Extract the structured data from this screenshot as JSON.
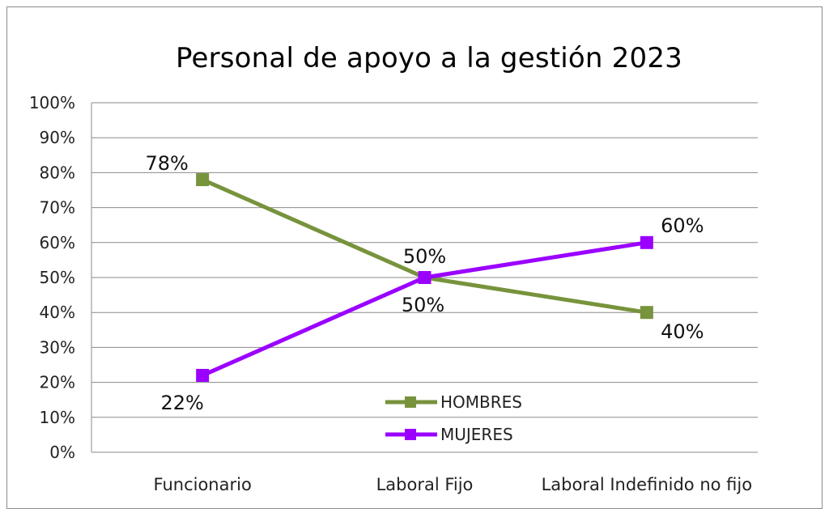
{
  "chart_data": {
    "type": "line",
    "title": "Personal de apoyo a la gestión 2023",
    "categories": [
      "Funcionario",
      "Laboral Fijo",
      "Laboral Indefinido no fijo"
    ],
    "series": [
      {
        "name": "HOMBRES",
        "values": [
          78,
          50,
          40
        ],
        "labels": [
          "78%",
          "50%",
          "40%"
        ],
        "color": "#77933c"
      },
      {
        "name": "MUJERES",
        "values": [
          22,
          50,
          60
        ],
        "labels": [
          "22%",
          "50%",
          "60%"
        ],
        "color": "#9b00ff"
      }
    ],
    "ylim": [
      0,
      100
    ],
    "yticks": [
      "0%",
      "10%",
      "20%",
      "30%",
      "40%",
      "50%",
      "60%",
      "70%",
      "80%",
      "90%",
      "100%"
    ],
    "grid": true,
    "legend": "bottom-center"
  }
}
